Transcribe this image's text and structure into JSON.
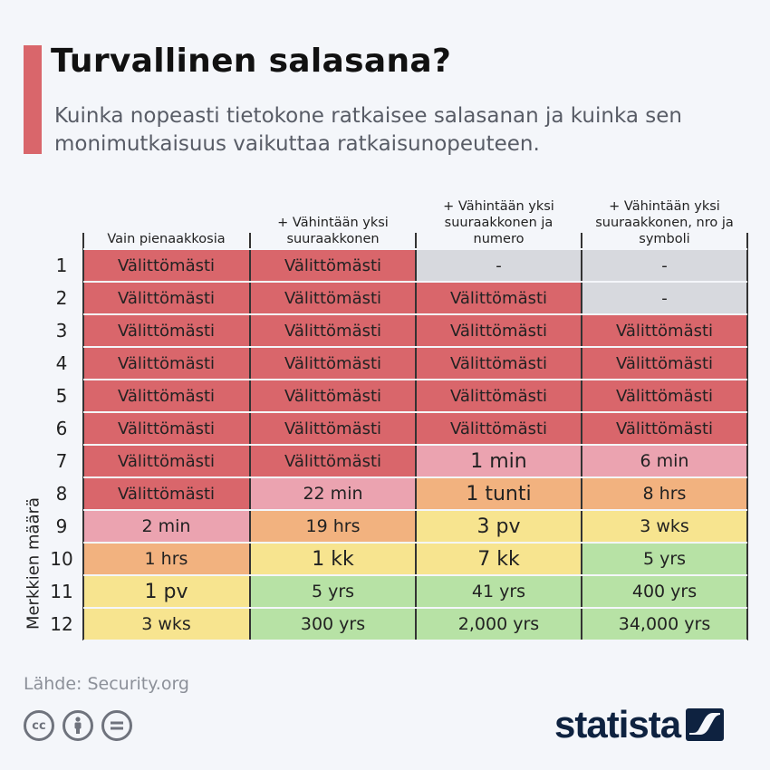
{
  "title": "Turvallinen salasana?",
  "subtitle": "Kuinka nopeasti tietokone ratkaisee salasanan ja kuinka sen monimutkaisuus vaikuttaa ratkaisunopeuteen.",
  "source": "Lähde: Security.org",
  "brand": "statista",
  "license_icons": [
    "cc-icon",
    "attribution-icon",
    "no-derivatives-icon"
  ],
  "colors": {
    "instant": "#d9666b",
    "minutes": "#eba3b0",
    "hours_weeks": "#f2b27f",
    "months_days": "#f7e48f",
    "years": "#b7e2a5",
    "not_applicable": "#d7d9de",
    "accent": "#d9666b",
    "brand": "#0e2240"
  },
  "chart_data": {
    "type": "table",
    "ylabel": "Merkkien määrä",
    "columns": [
      "Vain pienaakkosia",
      "+ Vähintään yksi suuraakkonen",
      "+ Vähintään yksi suuraakkonen ja numero",
      "+ Vähintään yksi suuraakkonen, nro ja symboli"
    ],
    "rows": [
      {
        "chars": "1",
        "cells": [
          {
            "v": "Välittömästi",
            "c": "instant"
          },
          {
            "v": "Välittömästi",
            "c": "instant"
          },
          {
            "v": "-",
            "c": "not_applicable"
          },
          {
            "v": "-",
            "c": "not_applicable"
          }
        ]
      },
      {
        "chars": "2",
        "cells": [
          {
            "v": "Välittömästi",
            "c": "instant"
          },
          {
            "v": "Välittömästi",
            "c": "instant"
          },
          {
            "v": "Välittömästi",
            "c": "instant"
          },
          {
            "v": "-",
            "c": "not_applicable"
          }
        ]
      },
      {
        "chars": "3",
        "cells": [
          {
            "v": "Välittömästi",
            "c": "instant"
          },
          {
            "v": "Välittömästi",
            "c": "instant"
          },
          {
            "v": "Välittömästi",
            "c": "instant"
          },
          {
            "v": "Välittömästi",
            "c": "instant"
          }
        ]
      },
      {
        "chars": "4",
        "cells": [
          {
            "v": "Välittömästi",
            "c": "instant"
          },
          {
            "v": "Välittömästi",
            "c": "instant"
          },
          {
            "v": "Välittömästi",
            "c": "instant"
          },
          {
            "v": "Välittömästi",
            "c": "instant"
          }
        ]
      },
      {
        "chars": "5",
        "cells": [
          {
            "v": "Välittömästi",
            "c": "instant"
          },
          {
            "v": "Välittömästi",
            "c": "instant"
          },
          {
            "v": "Välittömästi",
            "c": "instant"
          },
          {
            "v": "Välittömästi",
            "c": "instant"
          }
        ]
      },
      {
        "chars": "6",
        "cells": [
          {
            "v": "Välittömästi",
            "c": "instant"
          },
          {
            "v": "Välittömästi",
            "c": "instant"
          },
          {
            "v": "Välittömästi",
            "c": "instant"
          },
          {
            "v": "Välittömästi",
            "c": "instant"
          }
        ]
      },
      {
        "chars": "7",
        "cells": [
          {
            "v": "Välittömästi",
            "c": "instant"
          },
          {
            "v": "Välittömästi",
            "c": "instant"
          },
          {
            "v": "1 min",
            "c": "minutes"
          },
          {
            "v": "6 min",
            "c": "minutes"
          }
        ]
      },
      {
        "chars": "8",
        "cells": [
          {
            "v": "Välittömästi",
            "c": "instant"
          },
          {
            "v": "22 min",
            "c": "minutes"
          },
          {
            "v": "1 tunti",
            "c": "hours_weeks"
          },
          {
            "v": "8 hrs",
            "c": "hours_weeks"
          }
        ]
      },
      {
        "chars": "9",
        "cells": [
          {
            "v": "2 min",
            "c": "minutes"
          },
          {
            "v": "19 hrs",
            "c": "hours_weeks"
          },
          {
            "v": "3 pv",
            "c": "months_days"
          },
          {
            "v": "3 wks",
            "c": "months_days"
          }
        ]
      },
      {
        "chars": "10",
        "cells": [
          {
            "v": "1 hrs",
            "c": "hours_weeks"
          },
          {
            "v": "1 kk",
            "c": "months_days"
          },
          {
            "v": "7 kk",
            "c": "months_days"
          },
          {
            "v": "5 yrs",
            "c": "years"
          }
        ]
      },
      {
        "chars": "11",
        "cells": [
          {
            "v": "1 pv",
            "c": "months_days"
          },
          {
            "v": "5 yrs",
            "c": "years"
          },
          {
            "v": "41 yrs",
            "c": "years"
          },
          {
            "v": "400 yrs",
            "c": "years"
          }
        ]
      },
      {
        "chars": "12",
        "cells": [
          {
            "v": "3 wks",
            "c": "months_days"
          },
          {
            "v": "300 yrs",
            "c": "years"
          },
          {
            "v": "2,000 yrs",
            "c": "years"
          },
          {
            "v": "34,000 yrs",
            "c": "years"
          }
        ]
      }
    ]
  }
}
